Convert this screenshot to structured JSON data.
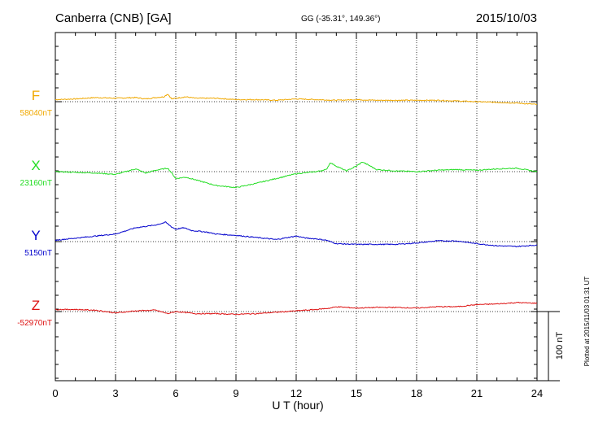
{
  "header": {
    "station": "Canberra (CNB)  [GA]",
    "coords": "GG (-35.31°, 149.36°)",
    "date": "2015/10/03"
  },
  "footer": {
    "plotted": "Plotted at 2015/11/03 01:31  UT",
    "scale_label": "100 nT"
  },
  "colors": {
    "F": "#f0a800",
    "X": "#22dd22",
    "Y": "#0000cc",
    "Z": "#dd1111"
  },
  "chart_data": {
    "type": "line",
    "xlabel": "U T (hour)",
    "xlim": [
      0,
      24
    ],
    "x_ticks": [
      0,
      3,
      6,
      9,
      12,
      15,
      18,
      21,
      24
    ],
    "scale_bar_nT": 100,
    "grid": true,
    "series": [
      {
        "name": "F",
        "baseline_label": "58040nT",
        "baseline": 58040,
        "points": [
          [
            0,
            58043
          ],
          [
            1,
            58044
          ],
          [
            2,
            58046
          ],
          [
            3,
            58045
          ],
          [
            4,
            58046
          ],
          [
            4.5,
            58044
          ],
          [
            5,
            58046
          ],
          [
            5.4,
            58047
          ],
          [
            5.6,
            58051
          ],
          [
            5.8,
            58044
          ],
          [
            6,
            58045
          ],
          [
            6.5,
            58047
          ],
          [
            7,
            58045
          ],
          [
            8,
            58045
          ],
          [
            9,
            58043
          ],
          [
            10,
            58043
          ],
          [
            11,
            58042
          ],
          [
            12,
            58044
          ],
          [
            13,
            58043
          ],
          [
            14,
            58042
          ],
          [
            15,
            58043
          ],
          [
            16,
            58042
          ],
          [
            17,
            58042
          ],
          [
            18,
            58042
          ],
          [
            19,
            58042
          ],
          [
            20,
            58041
          ],
          [
            21,
            58040
          ],
          [
            22,
            58039
          ],
          [
            23,
            58038
          ],
          [
            24,
            58036
          ]
        ]
      },
      {
        "name": "X",
        "baseline_label": "23160nT",
        "baseline": 23160,
        "points": [
          [
            0,
            23160
          ],
          [
            1,
            23159
          ],
          [
            2,
            23158
          ],
          [
            3,
            23156
          ],
          [
            3.5,
            23160
          ],
          [
            4,
            23164
          ],
          [
            4.5,
            23158
          ],
          [
            5,
            23162
          ],
          [
            5.6,
            23165
          ],
          [
            5.8,
            23158
          ],
          [
            6,
            23150
          ],
          [
            6.5,
            23152
          ],
          [
            7,
            23148
          ],
          [
            8,
            23140
          ],
          [
            9,
            23137
          ],
          [
            10,
            23143
          ],
          [
            11,
            23150
          ],
          [
            12,
            23157
          ],
          [
            13,
            23160
          ],
          [
            13.5,
            23163
          ],
          [
            13.7,
            23173
          ],
          [
            14,
            23168
          ],
          [
            14.5,
            23161
          ],
          [
            15,
            23168
          ],
          [
            15.3,
            23174
          ],
          [
            15.7,
            23168
          ],
          [
            16,
            23163
          ],
          [
            17,
            23161
          ],
          [
            18,
            23160
          ],
          [
            19,
            23162
          ],
          [
            20,
            23163
          ],
          [
            21,
            23162
          ],
          [
            22,
            23164
          ],
          [
            23,
            23165
          ],
          [
            24,
            23160
          ]
        ]
      },
      {
        "name": "Y",
        "baseline_label": "5150nT",
        "baseline": 5150,
        "points": [
          [
            0,
            5152
          ],
          [
            1,
            5155
          ],
          [
            2,
            5158
          ],
          [
            3,
            5161
          ],
          [
            4,
            5170
          ],
          [
            5,
            5174
          ],
          [
            5.5,
            5178
          ],
          [
            5.8,
            5171
          ],
          [
            6,
            5168
          ],
          [
            6.4,
            5170
          ],
          [
            6.8,
            5166
          ],
          [
            7.5,
            5164
          ],
          [
            8,
            5161
          ],
          [
            9,
            5159
          ],
          [
            10,
            5156
          ],
          [
            11,
            5153
          ],
          [
            12,
            5158
          ],
          [
            12.5,
            5155
          ],
          [
            13,
            5154
          ],
          [
            13.5,
            5152
          ],
          [
            14,
            5147
          ],
          [
            15,
            5146
          ],
          [
            16,
            5146
          ],
          [
            17,
            5146
          ],
          [
            18,
            5148
          ],
          [
            19,
            5151
          ],
          [
            20,
            5151
          ],
          [
            21,
            5147
          ],
          [
            22,
            5144
          ],
          [
            23,
            5143
          ],
          [
            24,
            5145
          ]
        ]
      },
      {
        "name": "Z",
        "baseline_label": "-52970nT",
        "baseline": -52970,
        "points": [
          [
            0,
            -52967
          ],
          [
            1,
            -52967
          ],
          [
            2,
            -52968
          ],
          [
            3,
            -52972
          ],
          [
            4,
            -52969
          ],
          [
            5,
            -52968
          ],
          [
            5.6,
            -52973
          ],
          [
            6,
            -52970
          ],
          [
            7,
            -52973
          ],
          [
            8,
            -52973
          ],
          [
            9,
            -52974
          ],
          [
            10,
            -52973
          ],
          [
            11,
            -52971
          ],
          [
            12,
            -52969
          ],
          [
            13,
            -52967
          ],
          [
            13.7,
            -52965
          ],
          [
            14,
            -52963
          ],
          [
            15,
            -52965
          ],
          [
            16,
            -52964
          ],
          [
            17,
            -52964
          ],
          [
            18,
            -52965
          ],
          [
            19,
            -52963
          ],
          [
            20,
            -52963
          ],
          [
            21,
            -52960
          ],
          [
            22,
            -52959
          ],
          [
            23,
            -52957
          ],
          [
            24,
            -52958
          ]
        ]
      }
    ]
  }
}
